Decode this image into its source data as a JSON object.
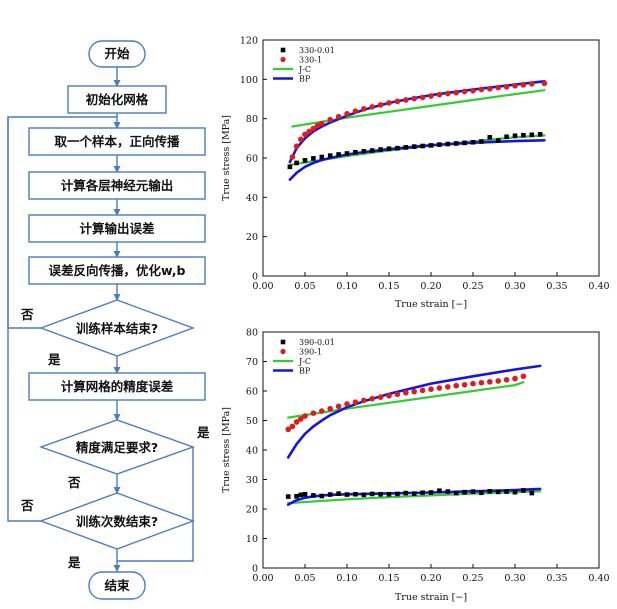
{
  "flowchart": {
    "start": "开始",
    "init": "初始化网格",
    "forward": "取一个样本，正向传播",
    "layer_output": "计算各层神经元输出",
    "output_error": "计算输出误差",
    "backprop": "误差反向传播，优化w,b",
    "samples_done": "训练样本结束?",
    "grid_error": "计算网格的精度误差",
    "precision_ok": "精度满足要求?",
    "iterations_done": "训练次数结束?",
    "end": "结束",
    "yes": "是",
    "no": "否"
  },
  "chart_data": [
    {
      "type": "scatter",
      "xlabel": "True strain [−]",
      "ylabel": "True stress [MPa]",
      "xlim": [
        0.0,
        0.4
      ],
      "ylim": [
        0,
        120
      ],
      "xticks": [
        "0.00",
        "0.05",
        "0.10",
        "0.15",
        "0.20",
        "0.25",
        "0.30",
        "0.35",
        "0.40"
      ],
      "yticks": [
        "0",
        "20",
        "40",
        "60",
        "80",
        "100",
        "120"
      ],
      "legend_position": "top-left",
      "series": [
        {
          "name": "330-0.01",
          "kind": "points",
          "marker": "square",
          "color": "#000000",
          "x": [
            0.032,
            0.04,
            0.05,
            0.06,
            0.07,
            0.08,
            0.09,
            0.1,
            0.11,
            0.12,
            0.13,
            0.14,
            0.15,
            0.16,
            0.17,
            0.18,
            0.19,
            0.2,
            0.21,
            0.22,
            0.23,
            0.24,
            0.25,
            0.26,
            0.27,
            0.28,
            0.29,
            0.3,
            0.31,
            0.32,
            0.33
          ],
          "y": [
            55.5,
            57.5,
            58.8,
            59.8,
            60.5,
            61.2,
            61.8,
            62.3,
            62.9,
            63.4,
            63.8,
            64.3,
            64.7,
            65.0,
            65.4,
            65.8,
            66.1,
            66.4,
            66.8,
            67.1,
            67.4,
            67.7,
            68.0,
            68.4,
            70.5,
            68.9,
            70.8,
            71.3,
            71.6,
            71.8,
            72.0
          ]
        },
        {
          "name": "330-1",
          "kind": "points",
          "marker": "circle",
          "color": "#e01b1b",
          "x": [
            0.035,
            0.04,
            0.045,
            0.05,
            0.055,
            0.06,
            0.065,
            0.07,
            0.08,
            0.09,
            0.1,
            0.11,
            0.12,
            0.13,
            0.14,
            0.15,
            0.16,
            0.17,
            0.18,
            0.19,
            0.2,
            0.21,
            0.22,
            0.23,
            0.24,
            0.25,
            0.26,
            0.27,
            0.28,
            0.29,
            0.3,
            0.31,
            0.32,
            0.335
          ],
          "y": [
            60.5,
            66.0,
            69.5,
            72.0,
            73.5,
            75.0,
            76.5,
            77.5,
            79.5,
            81.0,
            82.5,
            83.8,
            85.0,
            86.0,
            87.0,
            88.0,
            88.8,
            89.5,
            90.2,
            90.8,
            91.5,
            92.2,
            92.8,
            93.2,
            93.8,
            94.2,
            94.8,
            95.2,
            95.8,
            96.2,
            96.7,
            97.2,
            97.7,
            98.0
          ]
        },
        {
          "name": "J-C",
          "kind": "line",
          "color": "#33cc33",
          "width": 2.2,
          "x": [
            0.035,
            0.1,
            0.15,
            0.2,
            0.25,
            0.3,
            0.335
          ],
          "y": [
            76.0,
            80.5,
            83.5,
            86.5,
            89.5,
            92.5,
            94.5
          ]
        },
        {
          "name": "BP",
          "kind": "line",
          "color": "#1515e0",
          "width": 2.6,
          "x": [
            0.032,
            0.04,
            0.05,
            0.06,
            0.07,
            0.08,
            0.1,
            0.12,
            0.15,
            0.18,
            0.2,
            0.25,
            0.3,
            0.335
          ],
          "y": [
            58.0,
            65.0,
            70.0,
            73.5,
            76.0,
            78.0,
            81.5,
            84.5,
            88.0,
            90.5,
            92.0,
            94.8,
            97.3,
            99.0
          ]
        },
        {
          "name": "",
          "kind": "line",
          "color": "#33cc33",
          "width": 2.2,
          "x": [
            0.032,
            0.1,
            0.15,
            0.2,
            0.25,
            0.3,
            0.335
          ],
          "y": [
            56.5,
            61.0,
            63.8,
            66.3,
            68.5,
            70.5,
            71.5
          ]
        },
        {
          "name": "",
          "kind": "line",
          "color": "#1515e0",
          "width": 2.6,
          "x": [
            0.032,
            0.04,
            0.05,
            0.06,
            0.07,
            0.08,
            0.1,
            0.12,
            0.15,
            0.2,
            0.25,
            0.3,
            0.335
          ],
          "y": [
            49.0,
            52.5,
            55.5,
            57.5,
            59.0,
            60.0,
            61.8,
            63.0,
            64.5,
            66.5,
            67.8,
            68.6,
            69.0
          ]
        }
      ]
    },
    {
      "type": "scatter",
      "xlabel": "True strain [−]",
      "ylabel": "True stress [MPa]",
      "xlim": [
        0.0,
        0.4
      ],
      "ylim": [
        0,
        80
      ],
      "xticks": [
        "0.00",
        "0.05",
        "0.10",
        "0.15",
        "0.20",
        "0.25",
        "0.30",
        "0.35",
        "0.40"
      ],
      "yticks": [
        "0",
        "10",
        "20",
        "30",
        "40",
        "50",
        "60",
        "70",
        "80"
      ],
      "legend_position": "top-left",
      "series": [
        {
          "name": "390-0.01",
          "kind": "points",
          "marker": "square",
          "color": "#000000",
          "x": [
            0.03,
            0.04,
            0.045,
            0.05,
            0.06,
            0.07,
            0.08,
            0.09,
            0.1,
            0.11,
            0.12,
            0.13,
            0.14,
            0.15,
            0.16,
            0.17,
            0.18,
            0.19,
            0.2,
            0.21,
            0.22,
            0.23,
            0.24,
            0.25,
            0.26,
            0.27,
            0.28,
            0.29,
            0.3,
            0.31,
            0.32
          ],
          "y": [
            24.2,
            24.3,
            24.8,
            25.0,
            24.6,
            24.4,
            24.9,
            25.2,
            24.9,
            25.0,
            24.8,
            25.1,
            25.0,
            25.0,
            25.1,
            25.4,
            25.2,
            25.5,
            25.6,
            26.2,
            25.9,
            25.4,
            25.7,
            25.9,
            25.5,
            26.0,
            25.8,
            25.9,
            25.7,
            26.3,
            25.4
          ]
        },
        {
          "name": "390-1",
          "kind": "points",
          "marker": "circle",
          "color": "#e01b1b",
          "x": [
            0.03,
            0.035,
            0.04,
            0.045,
            0.05,
            0.06,
            0.07,
            0.08,
            0.09,
            0.1,
            0.11,
            0.12,
            0.13,
            0.14,
            0.15,
            0.16,
            0.17,
            0.18,
            0.19,
            0.2,
            0.21,
            0.22,
            0.23,
            0.24,
            0.25,
            0.26,
            0.27,
            0.28,
            0.29,
            0.3,
            0.31
          ],
          "y": [
            47.0,
            48.0,
            49.5,
            50.5,
            51.5,
            52.5,
            53.2,
            54.0,
            54.8,
            55.6,
            56.2,
            56.8,
            57.4,
            57.9,
            58.4,
            58.9,
            59.4,
            59.8,
            60.2,
            60.6,
            61.0,
            61.4,
            61.8,
            62.1,
            62.5,
            62.8,
            63.1,
            63.4,
            63.8,
            64.2,
            65.0
          ]
        },
        {
          "name": "J-C",
          "kind": "line",
          "color": "#33cc33",
          "width": 2.2,
          "x": [
            0.03,
            0.1,
            0.15,
            0.2,
            0.25,
            0.3,
            0.31
          ],
          "y": [
            51.0,
            54.0,
            56.0,
            58.0,
            60.0,
            62.0,
            63.0
          ]
        },
        {
          "name": "BP",
          "kind": "line",
          "color": "#1515e0",
          "width": 2.6,
          "x": [
            0.03,
            0.04,
            0.05,
            0.06,
            0.07,
            0.08,
            0.1,
            0.12,
            0.15,
            0.2,
            0.25,
            0.3,
            0.33
          ],
          "y": [
            37.5,
            42.0,
            45.5,
            48.0,
            50.0,
            51.8,
            54.5,
            56.5,
            59.0,
            62.5,
            65.0,
            67.3,
            68.5
          ]
        },
        {
          "name": "",
          "kind": "line",
          "color": "#33cc33",
          "width": 2.2,
          "x": [
            0.03,
            0.1,
            0.15,
            0.2,
            0.25,
            0.3,
            0.33
          ],
          "y": [
            22.0,
            23.3,
            24.0,
            24.6,
            25.2,
            25.7,
            26.0
          ]
        },
        {
          "name": "",
          "kind": "line",
          "color": "#1515e0",
          "width": 2.6,
          "x": [
            0.03,
            0.04,
            0.05,
            0.06,
            0.08,
            0.1,
            0.15,
            0.2,
            0.25,
            0.3,
            0.33
          ],
          "y": [
            21.5,
            23.0,
            23.8,
            24.3,
            24.8,
            25.0,
            25.3,
            25.6,
            26.0,
            26.4,
            26.8
          ]
        }
      ]
    }
  ]
}
